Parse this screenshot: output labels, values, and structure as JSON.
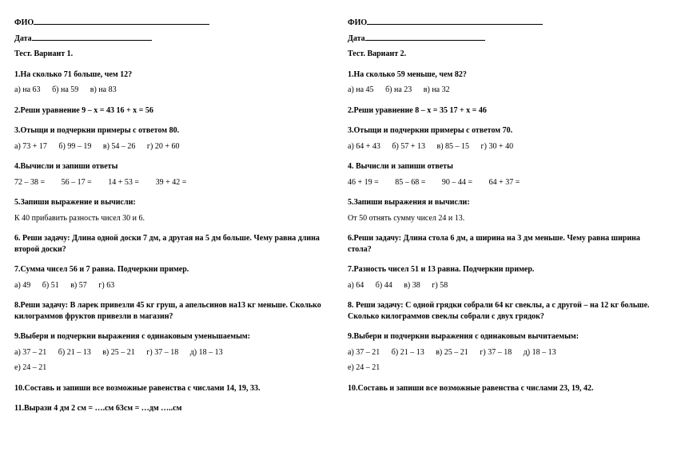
{
  "left": {
    "fio_label": "ФИО",
    "date_label": "Дата",
    "test_label": "Тест. Вариант 1.",
    "q1": {
      "num": "1.",
      "text": "На сколько 71 больше, чем 12?",
      "a": "а) на 63",
      "b": "б) на 59",
      "c": "в) на 83"
    },
    "q2": {
      "num": "2.",
      "text": "Реши уравнение 9 – х = 43      16 + х = 56"
    },
    "q3": {
      "num": "3.",
      "text": "Отыщи и подчеркни примеры с ответом 80.",
      "a": "а) 73 + 17",
      "b": "б) 99 – 19",
      "c": "в) 54 – 26",
      "d": "г) 20 + 60"
    },
    "q4": {
      "num": "4.",
      "text": "Вычисли и запиши ответы",
      "e1": "72 – 38 =",
      "e2": "56 – 17 =",
      "e3": "14 + 53 =",
      "e4": "39 + 42 ="
    },
    "q5": {
      "num": "5.",
      "text": "Запиши выражение и вычисли:",
      "sub": "К 40 прибавить разность чисел 30 и 6."
    },
    "q6": {
      "num": "6.",
      "text": " Реши задачу: Длина одной доски 7 дм, а другая на 5 дм больше. Чему равна длина второй доски?"
    },
    "q7": {
      "num": "7.",
      "text": "Сумма чисел 56 и 7 равна. Подчеркни пример.",
      "a": "а) 49",
      "b": "б) 51",
      "c": "в) 57",
      "d": "г) 63"
    },
    "q8": {
      "num": "8.",
      "text": "Реши задачу: В ларек привезли 45 кг груш, а апельсинов на13 кг меньше. Сколько килограммов фруктов привезли в магазин?"
    },
    "q9": {
      "num": "9.",
      "text": "Выбери и подчеркни выражения с одинаковым уменьшаемым:",
      "a": "а) 37 – 21",
      "b": "б) 21 – 13",
      "c": "в) 25 – 21",
      "d": "г) 37 – 18",
      "e": "д) 18 – 13",
      "f": "е) 24 – 21"
    },
    "q10": {
      "num": "10.",
      "text": "Составь и запиши все возможные равенства с числами 14, 19, 33."
    },
    "q11": {
      "num": "11.",
      "text": "Вырази    4 дм 2 см = ….см        63см = …дм …..см"
    }
  },
  "right": {
    "fio_label": "ФИО",
    "date_label": "Дата",
    "test_label": "Тест. Вариант 2.",
    "q1": {
      "num": "1.",
      "text": "На сколько 59 меньше, чем 82?",
      "a": "а) на 45",
      "b": "б) на 23",
      "c": "в) на 32"
    },
    "q2": {
      "num": "2.",
      "text": "Реши уравнение  8 – х = 35       17 + х = 46"
    },
    "q3": {
      "num": "3.",
      "text": "Отыщи и подчеркни примеры с ответом 70.",
      "a": "а) 64 + 43",
      "b": "б) 57 + 13",
      "c": "в) 85 – 15",
      "d": "г) 30 + 40"
    },
    "q4": {
      "num": "4.",
      "text": " Вычисли и запиши ответы",
      "e1": "46 + 19 =",
      "e2": "85 – 68 =",
      "e3": "90 – 44 =",
      "e4": "64 + 37 ="
    },
    "q5": {
      "num": "5.",
      "text": "Запиши выражения и вычисли:",
      "sub": " От 50 отнять сумму чисел 24 и 13."
    },
    "q6": {
      "num": "6.",
      "text": "Реши задачу: Длина стола 6 дм, а ширина на 3 дм меньше. Чему равна ширина стола?"
    },
    "q7": {
      "num": "7.",
      "text": "Разность чисел 51 и 13 равна. Подчеркни пример.",
      "a": "а) 64",
      "b": "б) 44",
      "c": "в) 38",
      "d": "г) 58"
    },
    "q8": {
      "num": "8.",
      "text": " Реши задачу: С одной грядки собрали 64 кг свеклы, а с другой – на 12 кг больше. Сколько килограммов свеклы собрали с двух грядок?"
    },
    "q9": {
      "num": "9.",
      "text": "Выбери и подчеркни выражения с одинаковым вычитаемым:",
      "a": "а) 37 – 21",
      "b": "б) 21 – 13",
      "c": "в) 25 – 21",
      "d": "г) 37 – 18",
      "e": "д) 18 – 13",
      "f": "е) 24 – 21"
    },
    "q10": {
      "num": "10.",
      "text": "Составь и запиши все возможные равенства с числами 23, 19, 42."
    }
  }
}
